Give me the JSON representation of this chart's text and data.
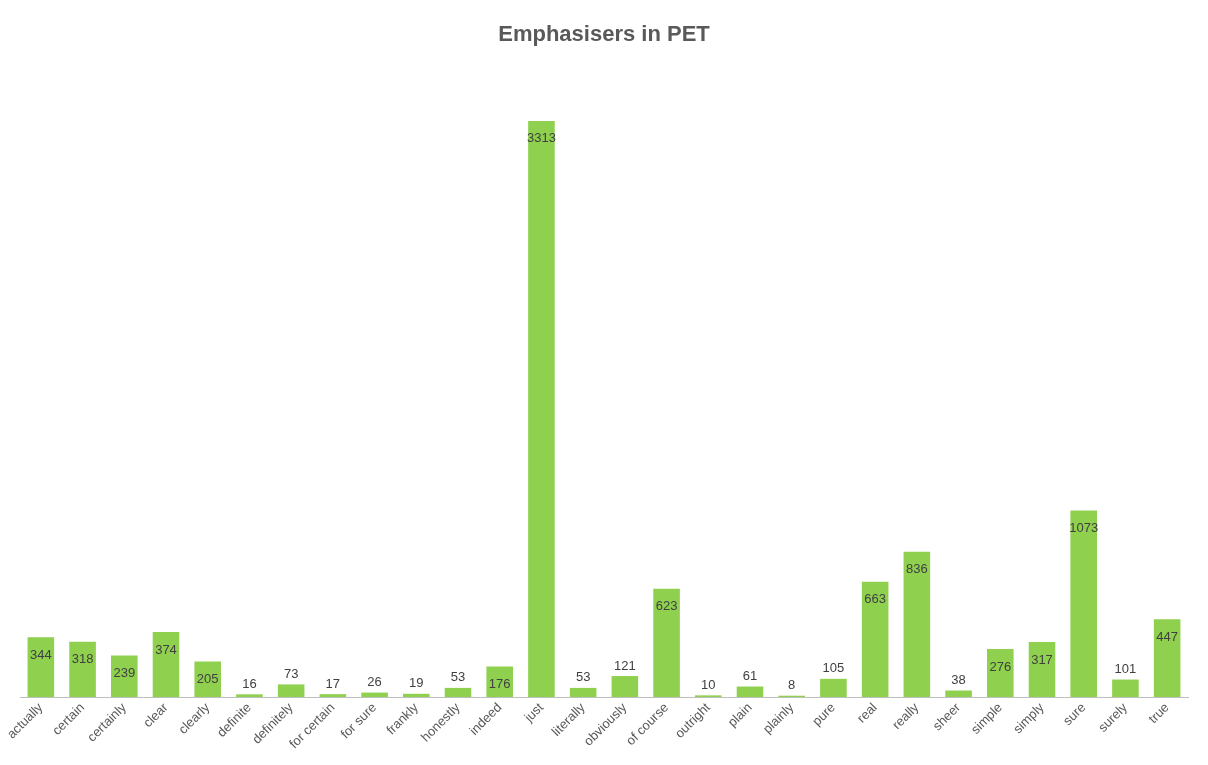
{
  "chart_data": {
    "type": "bar",
    "title": "Emphasisers in PET",
    "categories": [
      "actually",
      "certain",
      "certainly",
      "clear",
      "clearly",
      "definite",
      "definitely",
      "for certain",
      "for sure",
      "frankly",
      "honestly",
      "indeed",
      "just",
      "literally",
      "obviously",
      "of course",
      "outright",
      "plain",
      "plainly",
      "pure",
      "real",
      "really",
      "sheer",
      "simple",
      "simply",
      "sure",
      "surely",
      "true"
    ],
    "values": [
      344,
      318,
      239,
      374,
      205,
      16,
      73,
      17,
      26,
      19,
      53,
      176,
      3313,
      53,
      121,
      623,
      10,
      61,
      8,
      105,
      663,
      836,
      38,
      276,
      317,
      1073,
      101,
      447
    ],
    "color": "#8fd14f",
    "data_labels": true
  }
}
